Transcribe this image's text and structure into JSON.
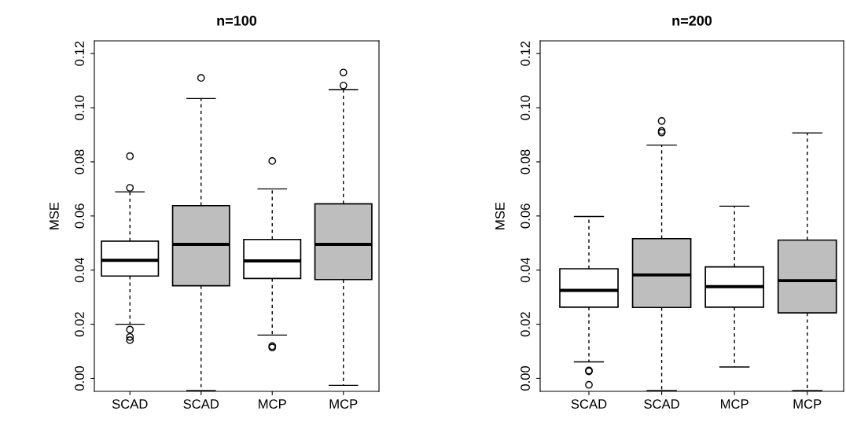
{
  "chart_data": [
    {
      "type": "box",
      "title": "n=100",
      "ylabel": "MSE",
      "categories": [
        "SCAD",
        "SCAD",
        "MCP",
        "MCP"
      ],
      "colors": [
        "#ffffff",
        "#bebebe",
        "#ffffff",
        "#bebebe"
      ],
      "ylim": [
        -0.0048,
        0.1247
      ],
      "yticks": [
        {
          "value": 0,
          "label": "0.00"
        },
        {
          "value": 0.02,
          "label": "0.02"
        },
        {
          "value": 0.04,
          "label": "0.04"
        },
        {
          "value": 0.06,
          "label": "0.06"
        },
        {
          "value": 0.08,
          "label": "0.08"
        },
        {
          "value": 0.1,
          "label": "0.10"
        },
        {
          "value": 0.12,
          "label": "0.12"
        }
      ],
      "grid": false,
      "legend": false,
      "boxes": [
        {
          "low": 0.02,
          "q1": 0.0378,
          "median": 0.0436,
          "q3": 0.0507,
          "high": 0.0689,
          "outliers": [
            0.0704,
            0.0821,
            0.018,
            0.0153,
            0.0141
          ]
        },
        {
          "low": -0.0045,
          "q1": 0.0342,
          "median": 0.0495,
          "q3": 0.0638,
          "high": 0.1034,
          "outliers": [
            0.111
          ]
        },
        {
          "low": 0.016,
          "q1": 0.0369,
          "median": 0.0434,
          "q3": 0.0513,
          "high": 0.07,
          "outliers": [
            0.0803,
            0.0119,
            0.0114
          ]
        },
        {
          "low": -0.0026,
          "q1": 0.0365,
          "median": 0.0495,
          "q3": 0.0645,
          "high": 0.1067,
          "outliers": [
            0.1082,
            0.113
          ]
        }
      ]
    },
    {
      "type": "box",
      "title": "n=200",
      "ylabel": "MSE",
      "categories": [
        "SCAD",
        "SCAD",
        "MCP",
        "MCP"
      ],
      "colors": [
        "#ffffff",
        "#bebebe",
        "#ffffff",
        "#bebebe"
      ],
      "ylim": [
        -0.0048,
        0.1247
      ],
      "yticks": [
        {
          "value": 0,
          "label": "0.00"
        },
        {
          "value": 0.02,
          "label": "0.02"
        },
        {
          "value": 0.04,
          "label": "0.04"
        },
        {
          "value": 0.06,
          "label": "0.06"
        },
        {
          "value": 0.08,
          "label": "0.08"
        },
        {
          "value": 0.1,
          "label": "0.10"
        },
        {
          "value": 0.12,
          "label": "0.12"
        }
      ],
      "grid": false,
      "legend": false,
      "boxes": [
        {
          "low": 0.0061,
          "q1": 0.0263,
          "median": 0.0325,
          "q3": 0.0405,
          "high": 0.0598,
          "outliers": [
            0.0029,
            0.0026,
            -0.0024
          ]
        },
        {
          "low": -0.0045,
          "q1": 0.0262,
          "median": 0.0382,
          "q3": 0.0516,
          "high": 0.0862,
          "outliers": [
            0.0951,
            0.0914,
            0.0908
          ]
        },
        {
          "low": 0.0042,
          "q1": 0.0263,
          "median": 0.0339,
          "q3": 0.0412,
          "high": 0.0636
        },
        {
          "low": -0.0045,
          "q1": 0.0242,
          "median": 0.0361,
          "q3": 0.0511,
          "high": 0.0907
        }
      ]
    }
  ]
}
